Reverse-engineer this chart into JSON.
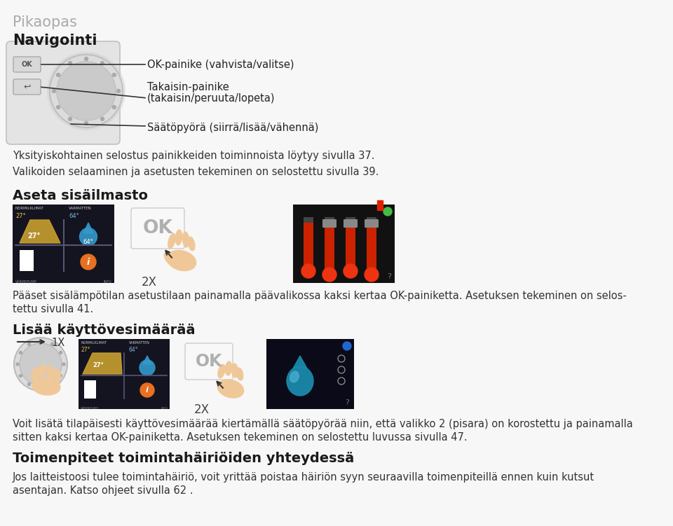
{
  "bg_color": "#f7f7f7",
  "title_light": "Pikaopas",
  "title_bold": "Navigointi",
  "nav_label1": "OK-painike (vahvista/valitse)",
  "nav_label2": "Takaisin-painike",
  "nav_label2b": "(takaisin/peruuta/lopeta)",
  "nav_label3": "Säätöpyörä (siirrä/lisää/vähennä)",
  "para1": "Yksityiskohtainen selostus painikkeiden toiminnoista löytyy sivulla 37.",
  "para2": "Valikoiden selaaminen ja asetusten tekeminen on selostettu sivulla 39.",
  "section1": "Aseta sisäilmasto",
  "section1_desc1": "Pääset sisälämpötilan asetustilaan painamalla päävalikossa kaksi kertaa OK-painiketta. Asetuksen tekeminen on selos-",
  "section1_desc2": "tettu sivulla 41.",
  "section2": "Lisää käyttövesimäärää",
  "section2_desc1": "Voit lisätä tilapäisesti käyttövesimäärää kiertämällä säätöpyörää niin, että valikko 2 (pisara) on korostettu ja painamalla",
  "section2_desc2": "sitten kaksi kertaa OK-painiketta. Asetuksen tekeminen on selostettu luvussa sivulla 47.",
  "section3": "Toimenpiteet toimintahäiriöiden yhteydessä",
  "section3_desc1": "Jos laitteistoosi tulee toimintahäiriö, voit yrittää poistaa häiriön syyn seuraavilla toimenpiteillä ennen kuin kutsut",
  "section3_desc2": "asentajan. Katso ohjeet sivulla 62 ."
}
